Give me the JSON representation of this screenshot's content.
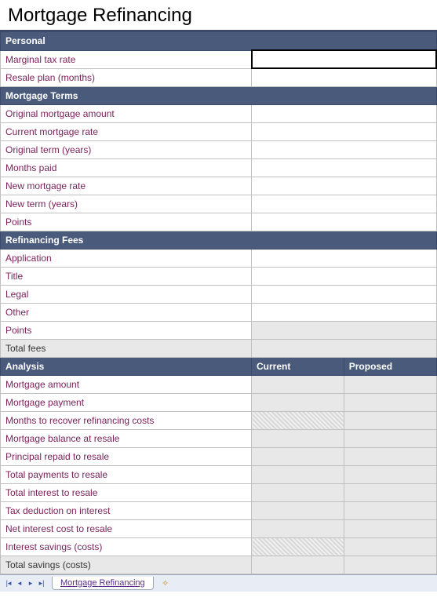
{
  "title": "Mortgage Refinancing",
  "sections": {
    "personal": {
      "header": "Personal",
      "rows": [
        {
          "label": "Marginal tax rate",
          "selected": true
        },
        {
          "label": "Resale plan (months)"
        }
      ]
    },
    "mortgage_terms": {
      "header": "Mortgage Terms",
      "rows": [
        {
          "label": "Original mortgage amount"
        },
        {
          "label": "Current mortgage rate"
        },
        {
          "label": "Original term (years)"
        },
        {
          "label": "Months paid"
        },
        {
          "label": "New mortgage rate"
        },
        {
          "label": "New term (years)"
        },
        {
          "label": "Points"
        }
      ]
    },
    "refinancing_fees": {
      "header": "Refinancing Fees",
      "rows": [
        {
          "label": "Application"
        },
        {
          "label": "Title"
        },
        {
          "label": "Legal"
        },
        {
          "label": "Other"
        },
        {
          "label": "Points",
          "value_shaded": true
        },
        {
          "label": "Total fees",
          "totals": true,
          "value_shaded": true
        }
      ]
    },
    "analysis": {
      "header": "Analysis",
      "col_current": "Current",
      "col_proposed": "Proposed",
      "rows": [
        {
          "label": "Mortgage amount",
          "c_shaded": true,
          "p_shaded": true
        },
        {
          "label": "Mortgage payment",
          "c_shaded": true,
          "p_shaded": true
        },
        {
          "label": "Months to recover refinancing costs",
          "c_hatched": true,
          "p_shaded": true
        },
        {
          "label": "Mortgage balance at resale",
          "c_shaded": true,
          "p_shaded": true
        },
        {
          "label": "Principal repaid to resale",
          "c_shaded": true,
          "p_shaded": true
        },
        {
          "label": "Total payments to resale",
          "c_shaded": true,
          "p_shaded": true
        },
        {
          "label": "Total interest to resale",
          "c_shaded": true,
          "p_shaded": true
        },
        {
          "label": "Tax deduction on interest",
          "c_shaded": true,
          "p_shaded": true
        },
        {
          "label": "Net interest cost to resale",
          "c_shaded": true,
          "p_shaded": true
        },
        {
          "label": "Interest savings (costs)",
          "c_hatched": true,
          "p_shaded": true
        },
        {
          "label": "Total savings (costs)",
          "totals": true,
          "c_shaded": true,
          "p_shaded": true
        }
      ]
    }
  },
  "tabbar": {
    "sheet_name": "Mortgage Refinancing"
  },
  "colors": {
    "section_header_bg": "#4a5a7a",
    "section_header_text": "#ffffff",
    "label_text": "#7a1f5a",
    "totals_bg": "#e8e8e8",
    "shaded_bg": "#e8e8e8",
    "border": "#c0c0c0",
    "title_rule": "#3b4a6b",
    "tabbar_bg": "#e8ecf4",
    "tab_text": "#5a2a8a"
  }
}
